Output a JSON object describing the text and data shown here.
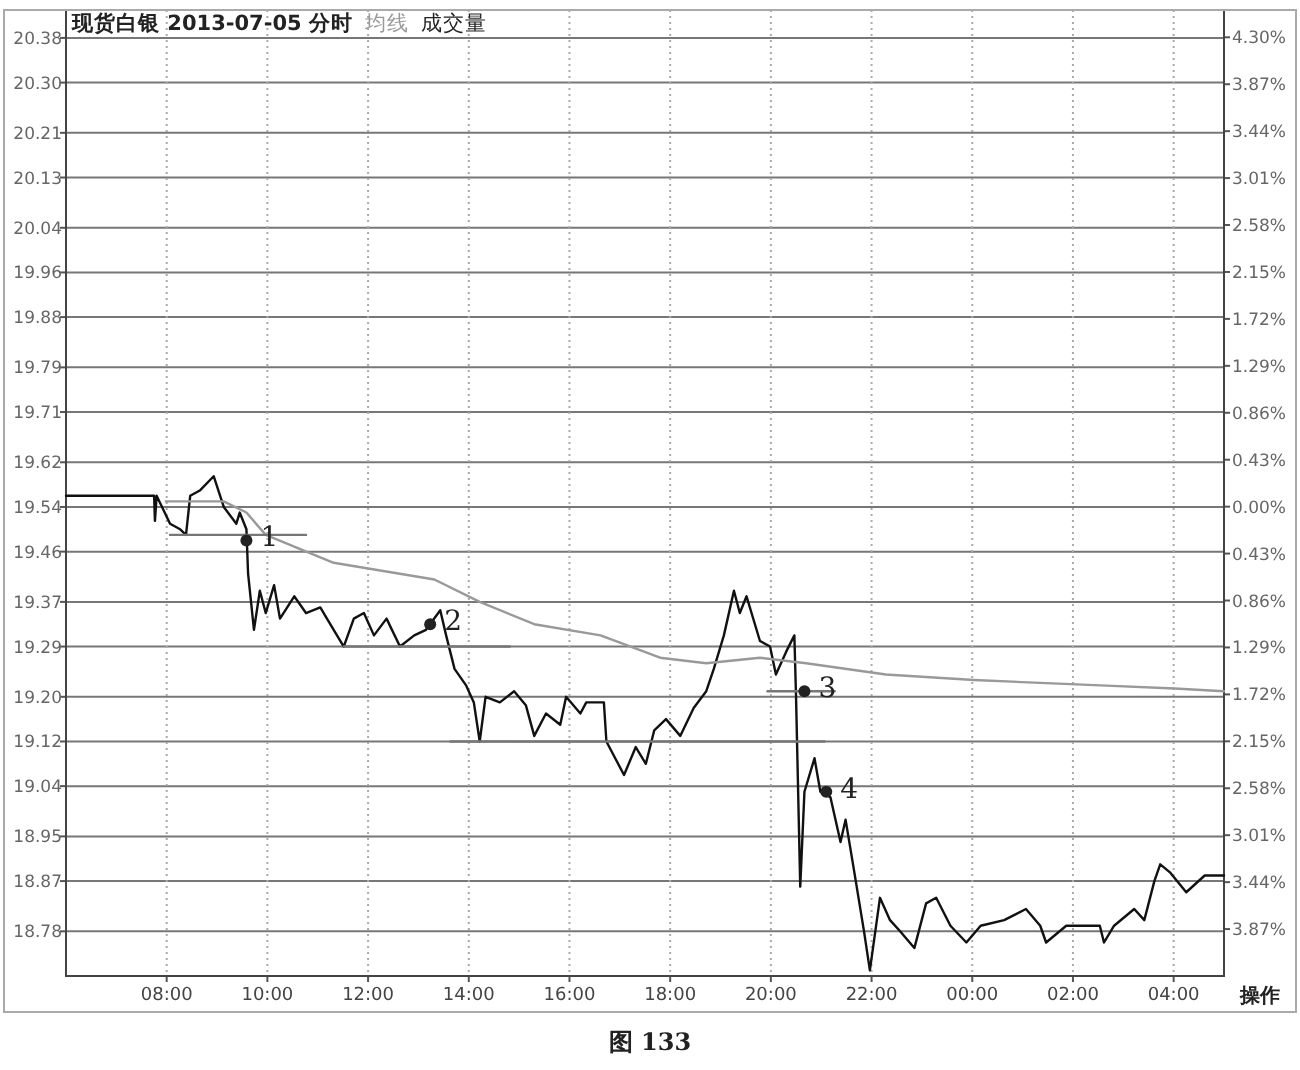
{
  "chart_data": {
    "type": "line",
    "title": "现货白银 2013-07-05 分时",
    "xlim": [
      "2013-07-05T06:00",
      "2013-07-06T05:00"
    ],
    "xticks": [
      {
        "value": "2013-07-05T08:00",
        "label": "08:00"
      },
      {
        "value": "2013-07-05T10:00",
        "label": "10:00"
      },
      {
        "value": "2013-07-05T12:00",
        "label": "12:00"
      },
      {
        "value": "2013-07-05T14:00",
        "label": "14:00"
      },
      {
        "value": "2013-07-05T16:00",
        "label": "16:00"
      },
      {
        "value": "2013-07-05T18:00",
        "label": "18:00"
      },
      {
        "value": "2013-07-05T20:00",
        "label": "20:00"
      },
      {
        "value": "2013-07-05T22:00",
        "label": "22:00"
      },
      {
        "value": "2013-07-06T00:00",
        "label": "00:00"
      },
      {
        "value": "2013-07-06T02:00",
        "label": "02:00"
      },
      {
        "value": "2013-07-06T04:00",
        "label": "04:00"
      }
    ],
    "ylim": [
      18.7,
      20.43
    ],
    "yticks": [
      {
        "value": 20.38,
        "label": "20.38"
      },
      {
        "value": 20.3,
        "label": "20.30"
      },
      {
        "value": 20.21,
        "label": "20.21"
      },
      {
        "value": 20.13,
        "label": "20.13"
      },
      {
        "value": 20.04,
        "label": "20.04"
      },
      {
        "value": 19.96,
        "label": "19.96"
      },
      {
        "value": 19.88,
        "label": "19.88"
      },
      {
        "value": 19.79,
        "label": "19.79"
      },
      {
        "value": 19.71,
        "label": "19.71"
      },
      {
        "value": 19.62,
        "label": "19.62"
      },
      {
        "value": 19.54,
        "label": "19.54"
      },
      {
        "value": 19.46,
        "label": "19.46"
      },
      {
        "value": 19.37,
        "label": "19.37"
      },
      {
        "value": 19.29,
        "label": "19.29"
      },
      {
        "value": 19.2,
        "label": "19.20"
      },
      {
        "value": 19.12,
        "label": "19.12"
      },
      {
        "value": 19.04,
        "label": "19.04"
      },
      {
        "value": 18.95,
        "label": "18.95"
      },
      {
        "value": 18.87,
        "label": "18.87"
      },
      {
        "value": 18.78,
        "label": "18.78"
      }
    ],
    "y2lim": [
      -4.3,
      4.55
    ],
    "y2ticks": [
      {
        "value": 4.3,
        "label": "4.30%"
      },
      {
        "value": 3.87,
        "label": "3.87%"
      },
      {
        "value": 3.44,
        "label": "3.44%"
      },
      {
        "value": 3.01,
        "label": "3.01%"
      },
      {
        "value": 2.58,
        "label": "2.58%"
      },
      {
        "value": 2.15,
        "label": "2.15%"
      },
      {
        "value": 1.72,
        "label": "1.72%"
      },
      {
        "value": 1.29,
        "label": "1.29%"
      },
      {
        "value": 0.86,
        "label": "0.86%"
      },
      {
        "value": 0.43,
        "label": "0.43%"
      },
      {
        "value": 0,
        "label": "0.00%"
      },
      {
        "value": -0.43,
        "label": "0.43%"
      },
      {
        "value": -0.86,
        "label": "0.86%"
      },
      {
        "value": -1.29,
        "label": "1.29%"
      },
      {
        "value": -1.72,
        "label": "1.72%"
      },
      {
        "value": -2.15,
        "label": "2.15%"
      },
      {
        "value": -2.58,
        "label": "2.58%"
      },
      {
        "value": -3.01,
        "label": "3.01%"
      },
      {
        "value": -3.44,
        "label": "3.44%"
      },
      {
        "value": -3.87,
        "label": "3.87%"
      }
    ],
    "grid": true,
    "legend": "top left",
    "series": [
      {
        "color": "#111111",
        "x": [
          "2013-07-05T06:00",
          "2013-07-05T07:45",
          "2013-07-05T07:46",
          "2013-07-05T07:48",
          "2013-07-05T08:04",
          "2013-07-05T08:16",
          "2013-07-05T08:23",
          "2013-07-05T08:28",
          "2013-07-05T08:40",
          "2013-07-05T08:56",
          "2013-07-05T09:08",
          "2013-07-05T09:23",
          "2013-07-05T09:27",
          "2013-07-05T09:35",
          "2013-07-05T09:37",
          "2013-07-05T09:44",
          "2013-07-05T09:51",
          "2013-07-05T09:58",
          "2013-07-05T10:08",
          "2013-07-05T10:15",
          "2013-07-05T10:32",
          "2013-07-05T10:46",
          "2013-07-05T11:03",
          "2013-07-05T11:19",
          "2013-07-05T11:31",
          "2013-07-05T11:43",
          "2013-07-05T11:55",
          "2013-07-05T12:07",
          "2013-07-05T12:22",
          "2013-07-05T12:38",
          "2013-07-05T12:55",
          "2013-07-05T13:09",
          "2013-07-05T13:26",
          "2013-07-05T13:33",
          "2013-07-05T13:43",
          "2013-07-05T13:57",
          "2013-07-05T14:06",
          "2013-07-05T14:13",
          "2013-07-05T14:20",
          "2013-07-05T14:37",
          "2013-07-05T14:54",
          "2013-07-05T15:08",
          "2013-07-05T15:18",
          "2013-07-05T15:32",
          "2013-07-05T15:49",
          "2013-07-05T15:56",
          "2013-07-05T16:13",
          "2013-07-05T16:20",
          "2013-07-05T16:41",
          "2013-07-05T16:44",
          "2013-07-05T17:05",
          "2013-07-05T17:19",
          "2013-07-05T17:31",
          "2013-07-05T17:41",
          "2013-07-05T17:55",
          "2013-07-05T18:12",
          "2013-07-05T18:28",
          "2013-07-05T18:43",
          "2013-07-05T18:52",
          "2013-07-05T19:04",
          "2013-07-05T19:16",
          "2013-07-05T19:23",
          "2013-07-05T19:31",
          "2013-07-05T19:47",
          "2013-07-05T19:59",
          "2013-07-05T20:06",
          "2013-07-05T20:18",
          "2013-07-05T20:28",
          "2013-07-05T20:30",
          "2013-07-05T20:35",
          "2013-07-05T20:40",
          "2013-07-05T20:52",
          "2013-07-05T20:59",
          "2013-07-05T21:11",
          "2013-07-05T21:23",
          "2013-07-05T21:29",
          "2013-07-05T21:39",
          "2013-07-05T21:51",
          "2013-07-05T21:58",
          "2013-07-05T22:10",
          "2013-07-05T22:22",
          "2013-07-05T22:34",
          "2013-07-05T22:51",
          "2013-07-05T23:05",
          "2013-07-05T23:17",
          "2013-07-05T23:34",
          "2013-07-05T23:53",
          "2013-07-06T00:10",
          "2013-07-06T00:38",
          "2013-07-06T01:04",
          "2013-07-06T01:21",
          "2013-07-06T01:28",
          "2013-07-06T01:52",
          "2013-07-06T02:32",
          "2013-07-06T02:37",
          "2013-07-06T02:49",
          "2013-07-06T03:13",
          "2013-07-06T03:25",
          "2013-07-06T03:37",
          "2013-07-06T03:44",
          "2013-07-06T03:56",
          "2013-07-06T04:15",
          "2013-07-06T04:37",
          "2013-07-06T05:00"
        ],
        "values": [
          19.56,
          19.56,
          19.515,
          19.56,
          19.51,
          19.5,
          19.49,
          19.56,
          19.57,
          19.595,
          19.54,
          19.51,
          19.53,
          19.5,
          19.42,
          19.32,
          19.39,
          19.35,
          19.4,
          19.34,
          19.38,
          19.35,
          19.36,
          19.32,
          19.29,
          19.34,
          19.35,
          19.31,
          19.34,
          19.29,
          19.31,
          19.32,
          19.355,
          19.31,
          19.25,
          19.22,
          19.19,
          19.12,
          19.2,
          19.19,
          19.21,
          19.185,
          19.13,
          19.17,
          19.15,
          19.2,
          19.17,
          19.19,
          19.19,
          19.12,
          19.06,
          19.11,
          19.08,
          19.14,
          19.16,
          19.13,
          19.18,
          19.21,
          19.25,
          19.31,
          19.39,
          19.35,
          19.38,
          19.3,
          19.29,
          19.24,
          19.28,
          19.31,
          19.2,
          18.86,
          19.03,
          19.09,
          19.03,
          19.02,
          18.94,
          18.98,
          18.89,
          18.78,
          18.71,
          18.84,
          18.8,
          18.78,
          18.75,
          18.83,
          18.84,
          18.79,
          18.76,
          18.79,
          18.8,
          18.82,
          18.79,
          18.76,
          18.79,
          18.79,
          18.76,
          18.79,
          18.82,
          18.8,
          18.87,
          18.9,
          18.885,
          18.85,
          18.88,
          18.88
        ]
      },
      {
        "name": "均线",
        "color": "#999999",
        "x": [
          "2013-07-05T07:59",
          "2013-07-05T09:08",
          "2013-07-05T09:35",
          "2013-07-05T09:58",
          "2013-07-05T11:19",
          "2013-07-05T13:19",
          "2013-07-05T14:13",
          "2013-07-05T15:18",
          "2013-07-05T16:37",
          "2013-07-05T17:48",
          "2013-07-05T18:43",
          "2013-07-05T19:47",
          "2013-07-05T20:42",
          "2013-07-05T22:17",
          "2013-07-06T00:02",
          "2013-07-06T02:40",
          "2013-07-06T04:01",
          "2013-07-06T05:00"
        ],
        "values": [
          19.55,
          19.55,
          19.53,
          19.49,
          19.44,
          19.41,
          19.37,
          19.33,
          19.31,
          19.27,
          19.26,
          19.27,
          19.26,
          19.24,
          19.23,
          19.22,
          19.215,
          19.21
        ]
      },
      {
        "color": "#777777",
        "x": [
          "2013-07-05T08:04",
          "2013-07-05T10:46"
        ],
        "values": [
          19.49,
          19.49
        ]
      },
      {
        "color": "#777777",
        "x": [
          "2013-07-05T11:31",
          "2013-07-05T14:49"
        ],
        "values": [
          19.29,
          19.29
        ]
      },
      {
        "color": "#777777",
        "x": [
          "2013-07-05T13:38",
          "2013-07-05T21:04"
        ],
        "values": [
          19.12,
          19.12
        ]
      },
      {
        "color": "#777777",
        "x": [
          "2013-07-05T19:56",
          "2013-07-05T21:16"
        ],
        "values": [
          19.21,
          19.21
        ]
      }
    ],
    "annotations": [
      {
        "text": "1",
        "x": "2013-07-05T09:35",
        "y": 19.48
      },
      {
        "text": "2",
        "x": "2013-07-05T13:14",
        "y": 19.33
      },
      {
        "text": "3",
        "x": "2013-07-05T20:40",
        "y": 19.21
      },
      {
        "text": "4",
        "x": "2013-07-05T21:06",
        "y": 19.03
      },
      "成交量",
      "操作",
      "图 133"
    ]
  }
}
